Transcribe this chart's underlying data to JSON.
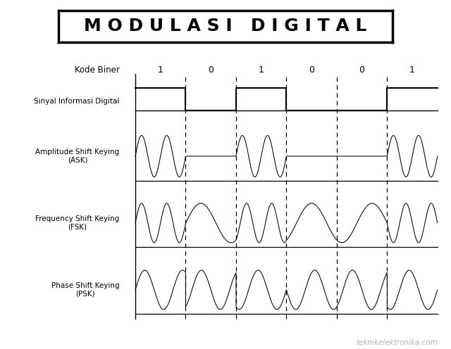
{
  "title": "M O D U L A S I   D I G I T A L",
  "title_fontsize": 18,
  "background_color": "#ffffff",
  "bits": [
    1,
    0,
    1,
    0,
    0,
    1
  ],
  "labels": {
    "kode_biner": "Kode Biner",
    "sinyal": "Sinyal Informasi Digital",
    "ask": "Amplitude Shift Keying\n(ASK)",
    "fsk": "Frequency Shift Keying\n(FSK)",
    "psk": "Phase Shift Keying\n(PSK)"
  },
  "watermark": "teknikelektronika.com",
  "freq_high": 12,
  "freq_low": 5,
  "freq_psk": 8,
  "n_samples": 12000
}
